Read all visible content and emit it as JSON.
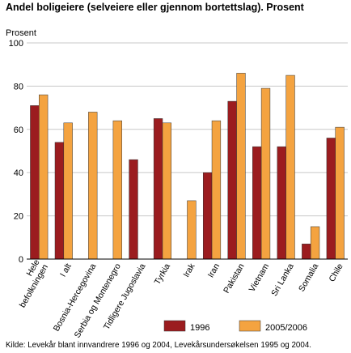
{
  "chart_data": {
    "type": "bar",
    "title": "Andel boligeiere (selveiere eller gjennom bortettslag). Prosent",
    "ylabel": "Prosent",
    "xlabel": "",
    "ylim": [
      0,
      100
    ],
    "yticks": [
      0,
      20,
      40,
      60,
      80,
      100
    ],
    "grid": true,
    "legend_position": "bottom",
    "categories": [
      "Hele befolkningen",
      "I alt",
      "Bosnia-Hercegovina",
      "Serbia og Montenegro",
      "Tidligere Jugoslavia",
      "Tyrkia",
      "Irak",
      "Iran",
      "Pakistan",
      "Vietnam",
      "Sri Lanka",
      "Somalia",
      "Chile"
    ],
    "category_lines": [
      [
        "Hele",
        "befolkningen"
      ],
      [
        "I alt"
      ],
      [
        "Bosnia-Hercegovina"
      ],
      [
        "Serbia og Montenegro"
      ],
      [
        "Tidligere Jugoslavia"
      ],
      [
        "Tyrkia"
      ],
      [
        "Irak"
      ],
      [
        "Iran"
      ],
      [
        "Pakistan"
      ],
      [
        "Vietnam"
      ],
      [
        "Sri Lanka"
      ],
      [
        "Somalia"
      ],
      [
        "Chile"
      ]
    ],
    "series": [
      {
        "name": "1996",
        "color": "#9b1c1f",
        "values": [
          71,
          54,
          null,
          null,
          46,
          65,
          null,
          40,
          73,
          52,
          52,
          7,
          56
        ]
      },
      {
        "name": "2005/2006",
        "color": "#f4a340",
        "values": [
          76,
          63,
          68,
          64,
          null,
          63,
          27,
          64,
          86,
          79,
          85,
          15,
          61
        ]
      }
    ],
    "source": "Kilde: Levekår blant innvandrere 1996 og 2004, Levekårsundersøkelsen 1995 og 2004."
  }
}
